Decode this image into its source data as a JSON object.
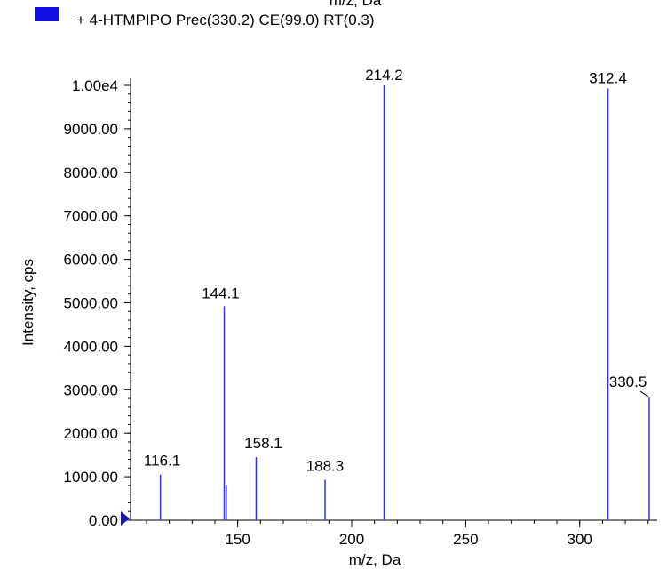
{
  "legend": {
    "text": "+ 4-HTMPIPO Prec(330.2) CE(99.0) RT(0.3)",
    "swatch_color": "#1010e0",
    "clipped_top_text": "m/z, Da"
  },
  "colors": {
    "peak": "#3333ee",
    "axis": "#000000",
    "marker": "#1a1aa0"
  },
  "chart_data": {
    "type": "bar",
    "xlabel": "m/z, Da",
    "ylabel": "Intensity, cps",
    "xlim": [
      103,
      334
    ],
    "ylim": [
      0,
      10200
    ],
    "x_ticks": [
      150,
      200,
      250,
      300
    ],
    "x_tick_labels": [
      "150",
      "200",
      "250",
      "300"
    ],
    "x_minor_step": 10,
    "y_ticks": [
      0,
      1000,
      2000,
      3000,
      4000,
      5000,
      6000,
      7000,
      8000,
      9000,
      10000
    ],
    "y_tick_labels": [
      "0.00",
      "1000.00",
      "2000.00",
      "3000.00",
      "4000.00",
      "5000.00",
      "6000.00",
      "7000.00",
      "8000.00",
      "9000.00",
      "1.00e4"
    ],
    "y_minor_step": 200,
    "grid": false,
    "peaks": [
      {
        "mz": 116.1,
        "intensity": 1050,
        "label": "116.1"
      },
      {
        "mz": 144.1,
        "intensity": 4920,
        "label": "144.1"
      },
      {
        "mz": 145.0,
        "intensity": 820,
        "label": ""
      },
      {
        "mz": 158.1,
        "intensity": 1450,
        "label": "158.1"
      },
      {
        "mz": 188.3,
        "intensity": 930,
        "label": "188.3"
      },
      {
        "mz": 214.2,
        "intensity": 10000,
        "label": "214.2"
      },
      {
        "mz": 312.4,
        "intensity": 9930,
        "label": "312.4"
      },
      {
        "mz": 330.5,
        "intensity": 2820,
        "label": "330.5"
      }
    ]
  }
}
